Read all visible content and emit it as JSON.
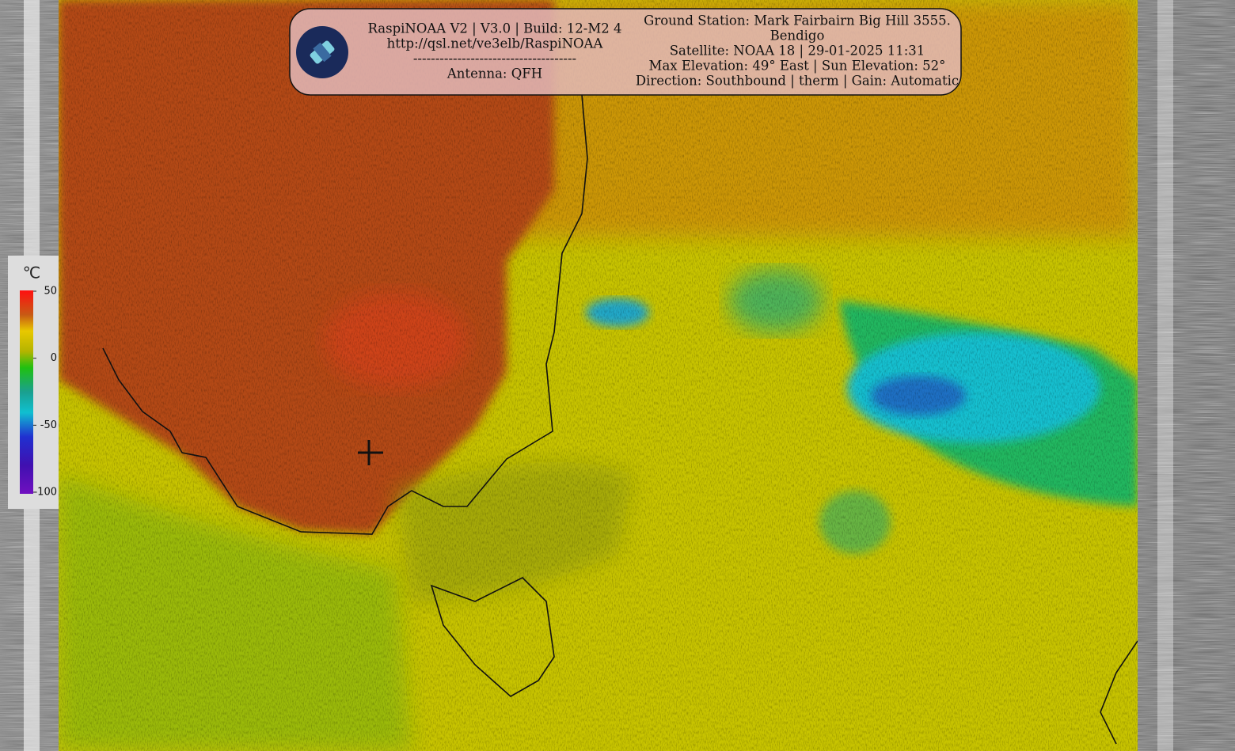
{
  "header": {
    "left_lines": [
      "RaspiNOAA V2 | V3.0 | Build: 12-M2 4",
      "http://qsl.net/ve3elb/RaspiNOAA",
      "-------------------------------------",
      "Antenna: QFH"
    ],
    "right_lines": [
      "Ground Station: Mark Fairbairn Big Hill 3555.",
      "Bendigo",
      "Satellite: NOAA 18 | 29-01-2025 11:31",
      "Max Elevation: 49° East | Sun Elevation: 52°",
      "Direction: Southbound | therm | Gain: Automatic"
    ]
  },
  "legend": {
    "unit": "℃",
    "ticks": [
      50,
      0,
      -50,
      -100
    ]
  }
}
